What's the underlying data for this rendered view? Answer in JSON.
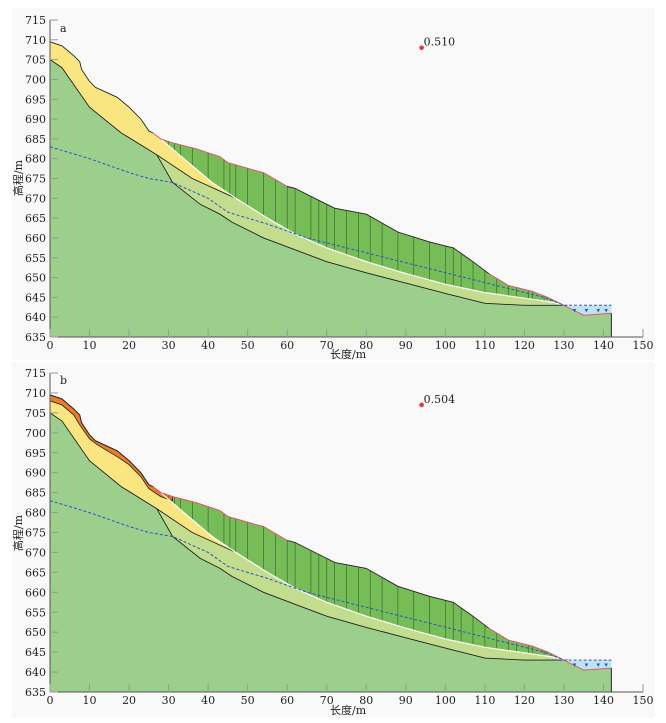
{
  "chart_data": [
    {
      "type": "diagram",
      "panel_label": "a",
      "xlabel": "长度/m",
      "ylabel": "高程/m",
      "xlim": [
        0,
        150
      ],
      "ylim": [
        635,
        715
      ],
      "xticks": [
        0,
        10,
        20,
        30,
        40,
        50,
        60,
        70,
        80,
        90,
        100,
        110,
        120,
        130,
        140,
        150
      ],
      "yticks": [
        635,
        640,
        645,
        650,
        655,
        660,
        665,
        670,
        675,
        680,
        685,
        690,
        695,
        700,
        705,
        710,
        715
      ],
      "safety_factor": {
        "label": "0.510",
        "x": 94,
        "y": 708
      },
      "has_surface_layer": false
    },
    {
      "type": "diagram",
      "panel_label": "b",
      "xlabel": "长度/m",
      "ylabel": "高程/m",
      "xlim": [
        0,
        150
      ],
      "ylim": [
        635,
        715
      ],
      "xticks": [
        0,
        10,
        20,
        30,
        40,
        50,
        60,
        70,
        80,
        90,
        100,
        110,
        120,
        130,
        140,
        150
      ],
      "yticks": [
        635,
        640,
        645,
        650,
        655,
        660,
        665,
        670,
        675,
        680,
        685,
        690,
        695,
        700,
        705,
        710,
        715
      ],
      "safety_factor": {
        "label": "0.504",
        "x": 94,
        "y": 707
      },
      "has_surface_layer": true
    }
  ],
  "profile": {
    "ground_surface": [
      [
        0,
        709.5
      ],
      [
        3,
        708.5
      ],
      [
        6,
        706
      ],
      [
        7.5,
        704.5
      ],
      [
        8,
        702.5
      ],
      [
        10,
        699.5
      ],
      [
        11.5,
        698
      ],
      [
        17,
        695.5
      ],
      [
        20,
        693
      ],
      [
        23,
        690
      ],
      [
        25,
        687
      ],
      [
        26,
        686.5
      ],
      [
        28,
        685
      ],
      [
        31,
        684
      ],
      [
        33,
        683.5
      ],
      [
        37,
        682.5
      ],
      [
        43,
        680.5
      ],
      [
        45,
        679
      ],
      [
        52,
        677
      ],
      [
        54,
        676.5
      ],
      [
        60,
        673
      ],
      [
        62,
        672.5
      ],
      [
        70,
        668.5
      ],
      [
        72,
        667.5
      ],
      [
        80,
        666
      ],
      [
        88,
        661.5
      ],
      [
        96,
        659
      ],
      [
        100,
        658
      ],
      [
        102,
        657.5
      ],
      [
        107,
        654
      ],
      [
        111,
        651
      ],
      [
        116,
        648
      ],
      [
        122,
        646.5
      ],
      [
        126,
        645
      ],
      [
        131,
        642.5
      ],
      [
        135,
        640.5
      ],
      [
        142,
        641
      ]
    ],
    "yellow_layer_base": [
      [
        0,
        705
      ],
      [
        3,
        703
      ],
      [
        10,
        693
      ],
      [
        18,
        686.5
      ],
      [
        27,
        681
      ],
      [
        36,
        675
      ],
      [
        47,
        670
      ]
    ],
    "slip_surface": [
      [
        28,
        685
      ],
      [
        35,
        679
      ],
      [
        41,
        674
      ],
      [
        47,
        670
      ],
      [
        55,
        665
      ],
      [
        62,
        661
      ],
      [
        70,
        657.5
      ],
      [
        80,
        654
      ],
      [
        90,
        651
      ],
      [
        100,
        648.3
      ],
      [
        110,
        646.2
      ],
      [
        120,
        644.8
      ],
      [
        127,
        643.8
      ],
      [
        131,
        642.8
      ]
    ],
    "lower_layer_base": [
      [
        27,
        681
      ],
      [
        31,
        674
      ],
      [
        38,
        668.5
      ],
      [
        43,
        666
      ],
      [
        46,
        664
      ],
      [
        54,
        660
      ],
      [
        62,
        657
      ],
      [
        70,
        654
      ],
      [
        80,
        651.2
      ],
      [
        90,
        648.6
      ],
      [
        100,
        646
      ],
      [
        110,
        643.5
      ],
      [
        120,
        643
      ],
      [
        127,
        643
      ],
      [
        131,
        643
      ]
    ],
    "water_table": [
      [
        0,
        683
      ],
      [
        10,
        680
      ],
      [
        20,
        676.5
      ],
      [
        25,
        675
      ],
      [
        31,
        674
      ],
      [
        40,
        670
      ],
      [
        45,
        666.5
      ],
      [
        55,
        663.5
      ],
      [
        65,
        660
      ],
      [
        75,
        657.5
      ],
      [
        85,
        655
      ],
      [
        95,
        652.5
      ],
      [
        105,
        650
      ],
      [
        115,
        647.5
      ],
      [
        125,
        645
      ],
      [
        130,
        643
      ],
      [
        142,
        643
      ]
    ],
    "surface_layer_base": [
      [
        0,
        708
      ],
      [
        3,
        707
      ],
      [
        6,
        704.5
      ],
      [
        7.5,
        702
      ],
      [
        10,
        698.5
      ],
      [
        12,
        697
      ],
      [
        17,
        694
      ],
      [
        20,
        692
      ],
      [
        23,
        689
      ],
      [
        25,
        686
      ],
      [
        28,
        684
      ],
      [
        31,
        683
      ]
    ],
    "slice_x": [
      29,
      30,
      31.5,
      33,
      36,
      40,
      44,
      45.5,
      47,
      50,
      54,
      57,
      60,
      62,
      66,
      68,
      70,
      72,
      75,
      78,
      81,
      84,
      88,
      92,
      96,
      100,
      102,
      104,
      107,
      110,
      113,
      116,
      118,
      121,
      122,
      125,
      127,
      129
    ]
  },
  "colors": {
    "bedrock": "#9ccf8c",
    "yellow_layer": "#fae681",
    "lower_layer": "#c2dd8e",
    "sliding_mass": "#76bd57",
    "surface_layer": "#ee7b26",
    "water_table": "#2a55c8",
    "water": "#bfe3f2",
    "marker": "#e8353a",
    "slip_edge": "#e05a6a"
  }
}
